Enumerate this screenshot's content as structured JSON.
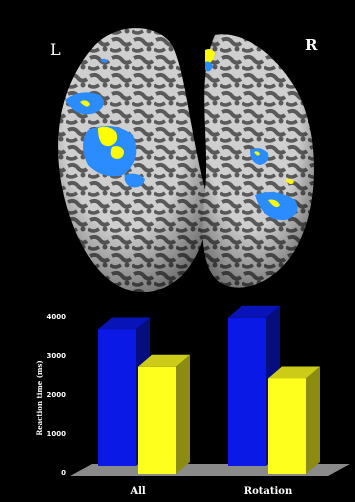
{
  "panels": {
    "left_label": "L",
    "right_label": "R"
  },
  "colors": {
    "background": "#000000",
    "bar_series_1": "#0a19e6",
    "bar_series_2": "#ffff1e",
    "cortex": "#c8c8c8",
    "sulci": "#5a5a5a",
    "activation_blue": "#2a8cff",
    "activation_yellow": "#ffff00"
  },
  "chart_data": {
    "type": "bar",
    "style": "3d",
    "categories": [
      "All",
      "Rotation"
    ],
    "series": [
      {
        "values": [
          3500,
          3800
        ]
      },
      {
        "values": [
          2750,
          2450
        ]
      }
    ],
    "ylabel": "Reaction time (ms)",
    "xlabel": "",
    "ylim": [
      0,
      4000
    ],
    "yticks": [
      "0",
      "1000",
      "2000",
      "3000",
      "4000"
    ],
    "grid": false,
    "legend": "none"
  }
}
